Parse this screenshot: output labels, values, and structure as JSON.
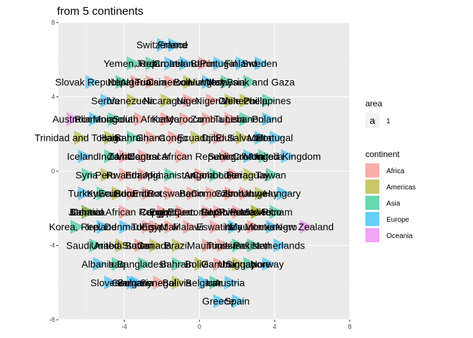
{
  "chart_data": {
    "type": "scatter",
    "title": "from 5 continents",
    "xlabel": "",
    "ylabel": "",
    "xlim": [
      -7.5,
      8
    ],
    "ylim": [
      -8,
      8
    ],
    "x_ticks": [
      -4,
      0,
      4,
      8
    ],
    "y_ticks": [
      -8,
      -4,
      0,
      4,
      8
    ],
    "grid": true,
    "legend_position": "right",
    "colors": {
      "panel": "#EBEBEB",
      "grid_major": "#FFFFFF",
      "grid_minor": "#F5F5F5",
      "Africa": "#F8766D",
      "Americas": "#A3A500",
      "Asia": "#00BF7D",
      "Europe": "#00B0F6",
      "Oceania": "#E76BF3"
    },
    "legends": [
      {
        "title": "area",
        "entries": [
          {
            "key": "a",
            "label": "1"
          }
        ]
      },
      {
        "title": "continent",
        "entries": [
          "Africa",
          "Americas",
          "Asia",
          "Europe",
          "Oceania"
        ]
      }
    ],
    "points": [
      {
        "label": "Switzerland",
        "x": -2.0,
        "y": 6.8,
        "continent": "Europe"
      },
      {
        "label": "France",
        "x": -1.4,
        "y": 6.8,
        "continent": "Europe"
      },
      {
        "label": "Yemen, Rep.",
        "x": -3.6,
        "y": 5.8,
        "continent": "Asia"
      },
      {
        "label": "Jordan",
        "x": -2.6,
        "y": 5.8,
        "continent": "Asia"
      },
      {
        "label": "Croatia",
        "x": -1.6,
        "y": 5.8,
        "continent": "Europe"
      },
      {
        "label": "Ireland",
        "x": -0.8,
        "y": 5.8,
        "continent": "Europe"
      },
      {
        "label": "Benin",
        "x": 0.2,
        "y": 5.8,
        "continent": "Africa"
      },
      {
        "label": "Portugal",
        "x": 1.0,
        "y": 5.8,
        "continent": "Europe"
      },
      {
        "label": "Finland",
        "x": 2.2,
        "y": 5.8,
        "continent": "Europe"
      },
      {
        "label": "Sweden",
        "x": 3.2,
        "y": 5.8,
        "continent": "Europe"
      },
      {
        "label": "Slovak Republic",
        "x": -5.8,
        "y": 4.8,
        "continent": "Europe"
      },
      {
        "label": "Nepal",
        "x": -4.2,
        "y": 4.8,
        "continent": "Asia"
      },
      {
        "label": "Algeria",
        "x": -3.4,
        "y": 4.8,
        "continent": "Africa"
      },
      {
        "label": "Tunisia",
        "x": -2.6,
        "y": 4.8,
        "continent": "Africa"
      },
      {
        "label": "Cameroon",
        "x": -1.6,
        "y": 4.8,
        "continent": "Africa"
      },
      {
        "label": "Bolivia",
        "x": -0.6,
        "y": 4.8,
        "continent": "Americas"
      },
      {
        "label": "Hungary",
        "x": 0.4,
        "y": 4.8,
        "continent": "Europe"
      },
      {
        "label": "Malaysia",
        "x": 1.4,
        "y": 4.8,
        "continent": "Asia"
      },
      {
        "label": "West Bank and Gaza",
        "x": 2.6,
        "y": 4.8,
        "continent": "Asia"
      },
      {
        "label": "Serbia",
        "x": -5.0,
        "y": 3.8,
        "continent": "Europe"
      },
      {
        "label": "Venezuela",
        "x": -3.6,
        "y": 3.8,
        "continent": "Americas"
      },
      {
        "label": "Nicaragua",
        "x": -1.8,
        "y": 3.8,
        "continent": "Americas"
      },
      {
        "label": "Niger",
        "x": -0.6,
        "y": 3.8,
        "continent": "Africa"
      },
      {
        "label": "Nigeria",
        "x": 0.6,
        "y": 3.8,
        "continent": "Africa"
      },
      {
        "label": "Chile",
        "x": 1.6,
        "y": 3.8,
        "continent": "Americas"
      },
      {
        "label": "Venezuela",
        "x": 2.4,
        "y": 3.8,
        "continent": "Americas"
      },
      {
        "label": "Philippines",
        "x": 3.6,
        "y": 3.8,
        "continent": "Asia"
      },
      {
        "label": "Australia",
        "x": -6.8,
        "y": 2.8,
        "continent": "Oceania"
      },
      {
        "label": "Romania",
        "x": -5.6,
        "y": 2.8,
        "continent": "Europe"
      },
      {
        "label": "Mongolia",
        "x": -4.6,
        "y": 2.8,
        "continent": "Asia"
      },
      {
        "label": "South Africa",
        "x": -3.2,
        "y": 2.8,
        "continent": "Africa"
      },
      {
        "label": "Kenya",
        "x": -1.8,
        "y": 2.8,
        "continent": "Africa"
      },
      {
        "label": "Morocco",
        "x": -0.8,
        "y": 2.8,
        "continent": "Africa"
      },
      {
        "label": "Zambia",
        "x": 0.4,
        "y": 2.8,
        "continent": "Africa"
      },
      {
        "label": "Tunisia",
        "x": 1.6,
        "y": 2.8,
        "continent": "Africa"
      },
      {
        "label": "Lebanon",
        "x": 2.4,
        "y": 2.8,
        "continent": "Asia"
      },
      {
        "label": "Poland",
        "x": 3.6,
        "y": 2.8,
        "continent": "Europe"
      },
      {
        "label": "Trinidad and Tobago",
        "x": -6.4,
        "y": 1.8,
        "continent": "Americas"
      },
      {
        "label": "Haiti",
        "x": -4.8,
        "y": 1.8,
        "continent": "Americas"
      },
      {
        "label": "Bahrain",
        "x": -3.6,
        "y": 1.8,
        "continent": "Asia"
      },
      {
        "label": "Ghana",
        "x": -2.6,
        "y": 1.8,
        "continent": "Africa"
      },
      {
        "label": "Congo",
        "x": -1.4,
        "y": 1.8,
        "continent": "Africa"
      },
      {
        "label": "Ecuador",
        "x": -0.2,
        "y": 1.8,
        "continent": "Americas"
      },
      {
        "label": "Djibouti",
        "x": 1.0,
        "y": 1.8,
        "continent": "Africa"
      },
      {
        "label": "El Salvador",
        "x": 2.2,
        "y": 1.8,
        "continent": "Americas"
      },
      {
        "label": "Malta",
        "x": 3.2,
        "y": 1.8,
        "continent": "Europe"
      },
      {
        "label": "Portugal",
        "x": 4.0,
        "y": 1.8,
        "continent": "Europe"
      },
      {
        "label": "Iceland",
        "x": -6.2,
        "y": 0.8,
        "continent": "Europe"
      },
      {
        "label": "India",
        "x": -4.8,
        "y": 0.8,
        "continent": "Asia"
      },
      {
        "label": "Zambia",
        "x": -4.0,
        "y": 0.8,
        "continent": "Africa"
      },
      {
        "label": "Madagascar",
        "x": -3.0,
        "y": 0.8,
        "continent": "Africa"
      },
      {
        "label": "Central African Republic",
        "x": -1.0,
        "y": 0.8,
        "continent": "Africa"
      },
      {
        "label": "Senegal",
        "x": 1.4,
        "y": 0.8,
        "continent": "Africa"
      },
      {
        "label": "Croatia",
        "x": 2.6,
        "y": 0.8,
        "continent": "Europe"
      },
      {
        "label": "Mongolia",
        "x": 3.4,
        "y": 0.8,
        "continent": "Asia"
      },
      {
        "label": "United Kingdom",
        "x": 4.6,
        "y": 0.8,
        "continent": "Europe"
      },
      {
        "label": "Syria",
        "x": -6.0,
        "y": -0.2,
        "continent": "Asia"
      },
      {
        "label": "Peru",
        "x": -5.0,
        "y": -0.2,
        "continent": "Americas"
      },
      {
        "label": "Rwanda",
        "x": -4.0,
        "y": -0.2,
        "continent": "Africa"
      },
      {
        "label": "Ethiopia",
        "x": -3.0,
        "y": -0.2,
        "continent": "Africa"
      },
      {
        "label": "Afghanistan",
        "x": -1.6,
        "y": -0.2,
        "continent": "Asia"
      },
      {
        "label": "Angola",
        "x": 0.0,
        "y": -0.2,
        "continent": "Africa"
      },
      {
        "label": "Cambodia",
        "x": 0.8,
        "y": -0.2,
        "continent": "Asia"
      },
      {
        "label": "Liberia",
        "x": 1.8,
        "y": -0.2,
        "continent": "Africa"
      },
      {
        "label": "Paraguay",
        "x": 2.6,
        "y": -0.2,
        "continent": "Americas"
      },
      {
        "label": "Taiwan",
        "x": 3.8,
        "y": -0.2,
        "continent": "Asia"
      },
      {
        "label": "Turkey",
        "x": -6.2,
        "y": -1.2,
        "continent": "Europe"
      },
      {
        "label": "Kuwait",
        "x": -5.2,
        "y": -1.2,
        "continent": "Asia"
      },
      {
        "label": "Ecuador",
        "x": -4.4,
        "y": -1.2,
        "continent": "Americas"
      },
      {
        "label": "Burundi",
        "x": -3.6,
        "y": -1.2,
        "continent": "Africa"
      },
      {
        "label": "Eritrea",
        "x": -2.8,
        "y": -1.2,
        "continent": "Africa"
      },
      {
        "label": "Botswana",
        "x": -1.6,
        "y": -1.2,
        "continent": "Africa"
      },
      {
        "label": "Benin",
        "x": -0.4,
        "y": -1.2,
        "continent": "Africa"
      },
      {
        "label": "Comoros",
        "x": 0.6,
        "y": -1.2,
        "continent": "Africa"
      },
      {
        "label": "Gabon",
        "x": 1.6,
        "y": -1.2,
        "continent": "Africa"
      },
      {
        "label": "Zimbabwe",
        "x": 2.4,
        "y": -1.2,
        "continent": "Africa"
      },
      {
        "label": "Uruguay",
        "x": 3.2,
        "y": -1.2,
        "continent": "Americas"
      },
      {
        "label": "Hungary",
        "x": 4.4,
        "y": -1.2,
        "continent": "Europe"
      },
      {
        "label": "Bahrain",
        "x": -6.0,
        "y": -2.2,
        "continent": "Asia"
      },
      {
        "label": "Jamaica",
        "x": -6.0,
        "y": -2.2,
        "continent": "Americas"
      },
      {
        "label": "Central African Republic",
        "x": -4.0,
        "y": -2.2,
        "continent": "Africa"
      },
      {
        "label": "Egypt",
        "x": -2.0,
        "y": -2.2,
        "continent": "Africa"
      },
      {
        "label": "Congo, Dem. Rep.",
        "x": -1.0,
        "y": -2.2,
        "continent": "Africa"
      },
      {
        "label": "Equatorial Guinea",
        "x": 0.4,
        "y": -2.2,
        "continent": "Africa"
      },
      {
        "label": "Gambia",
        "x": 1.0,
        "y": -2.2,
        "continent": "Africa"
      },
      {
        "label": "Rwanda",
        "x": 2.0,
        "y": -2.2,
        "continent": "Africa"
      },
      {
        "label": "Puerto Rico",
        "x": 3.0,
        "y": -2.2,
        "continent": "Americas"
      },
      {
        "label": "Mexico",
        "x": 3.0,
        "y": -2.2,
        "continent": "Americas"
      },
      {
        "label": "Vietnam",
        "x": 4.0,
        "y": -2.2,
        "continent": "Asia"
      },
      {
        "label": "Korea, Rep.",
        "x": -6.6,
        "y": -3.0,
        "continent": "Asia"
      },
      {
        "label": "Ireland",
        "x": -5.2,
        "y": -3.0,
        "continent": "Europe"
      },
      {
        "label": "Denmark",
        "x": -4.0,
        "y": -3.0,
        "continent": "Europe"
      },
      {
        "label": "Tunisia",
        "x": -2.8,
        "y": -3.0,
        "continent": "Africa"
      },
      {
        "label": "Egypt",
        "x": -2.4,
        "y": -3.0,
        "continent": "Africa"
      },
      {
        "label": "Mali",
        "x": -1.6,
        "y": -3.0,
        "continent": "Africa"
      },
      {
        "label": "Malawi",
        "x": -0.6,
        "y": -3.0,
        "continent": "Africa"
      },
      {
        "label": "Eswatini",
        "x": 0.8,
        "y": -3.0,
        "continent": "Africa"
      },
      {
        "label": "Italy",
        "x": 1.8,
        "y": -3.0,
        "continent": "Europe"
      },
      {
        "label": "Mauritania",
        "x": 2.8,
        "y": -3.0,
        "continent": "Africa"
      },
      {
        "label": "Montenegro",
        "x": 3.8,
        "y": -3.0,
        "continent": "Europe"
      },
      {
        "label": "New Zealand",
        "x": 5.6,
        "y": -3.0,
        "continent": "Oceania"
      },
      {
        "label": "Saudi Arabia",
        "x": -5.6,
        "y": -4.0,
        "continent": "Asia"
      },
      {
        "label": "United States",
        "x": -4.2,
        "y": -4.0,
        "continent": "Americas"
      },
      {
        "label": "Sudan",
        "x": -3.2,
        "y": -4.0,
        "continent": "Africa"
      },
      {
        "label": "Canada",
        "x": -2.4,
        "y": -4.0,
        "continent": "Americas"
      },
      {
        "label": "Brazil",
        "x": -1.2,
        "y": -4.0,
        "continent": "Americas"
      },
      {
        "label": "Mauritius",
        "x": 0.4,
        "y": -4.0,
        "continent": "Africa"
      },
      {
        "label": "Tunisia",
        "x": 1.2,
        "y": -4.0,
        "continent": "Africa"
      },
      {
        "label": "Israel",
        "x": 2.0,
        "y": -4.0,
        "continent": "Asia"
      },
      {
        "label": "Pakistan",
        "x": 2.8,
        "y": -4.0,
        "continent": "Asia"
      },
      {
        "label": "Netherlands",
        "x": 4.2,
        "y": -4.0,
        "continent": "Europe"
      },
      {
        "label": "Albania",
        "x": -5.4,
        "y": -5.0,
        "continent": "Europe"
      },
      {
        "label": "Iraq",
        "x": -4.4,
        "y": -5.0,
        "continent": "Asia"
      },
      {
        "label": "Bangladesh",
        "x": -3.0,
        "y": -5.0,
        "continent": "Asia"
      },
      {
        "label": "Bahrain",
        "x": -1.2,
        "y": -5.0,
        "continent": "Asia"
      },
      {
        "label": "Bolivia",
        "x": 0.0,
        "y": -5.0,
        "continent": "Americas"
      },
      {
        "label": "Gambia",
        "x": 1.0,
        "y": -5.0,
        "continent": "Africa"
      },
      {
        "label": "Uruguay",
        "x": 2.0,
        "y": -5.0,
        "continent": "Americas"
      },
      {
        "label": "Singapore",
        "x": 2.6,
        "y": -5.0,
        "continent": "Asia"
      },
      {
        "label": "Norway",
        "x": 3.6,
        "y": -5.0,
        "continent": "Europe"
      },
      {
        "label": "Slovenia",
        "x": -4.8,
        "y": -6.0,
        "continent": "Europe"
      },
      {
        "label": "Germany",
        "x": -3.6,
        "y": -6.0,
        "continent": "Europe"
      },
      {
        "label": "Bulgaria",
        "x": -3.4,
        "y": -6.0,
        "continent": "Europe"
      },
      {
        "label": "Senegal",
        "x": -2.2,
        "y": -6.0,
        "continent": "Africa"
      },
      {
        "label": "Bolivia",
        "x": -1.2,
        "y": -6.0,
        "continent": "Americas"
      },
      {
        "label": "Belgium",
        "x": 0.2,
        "y": -6.0,
        "continent": "Europe"
      },
      {
        "label": "Iran",
        "x": 0.8,
        "y": -6.0,
        "continent": "Asia"
      },
      {
        "label": "Austria",
        "x": 1.6,
        "y": -6.0,
        "continent": "Europe"
      },
      {
        "label": "Greece",
        "x": 1.0,
        "y": -7.0,
        "continent": "Europe"
      },
      {
        "label": "Spain",
        "x": 2.0,
        "y": -7.0,
        "continent": "Europe"
      }
    ]
  }
}
